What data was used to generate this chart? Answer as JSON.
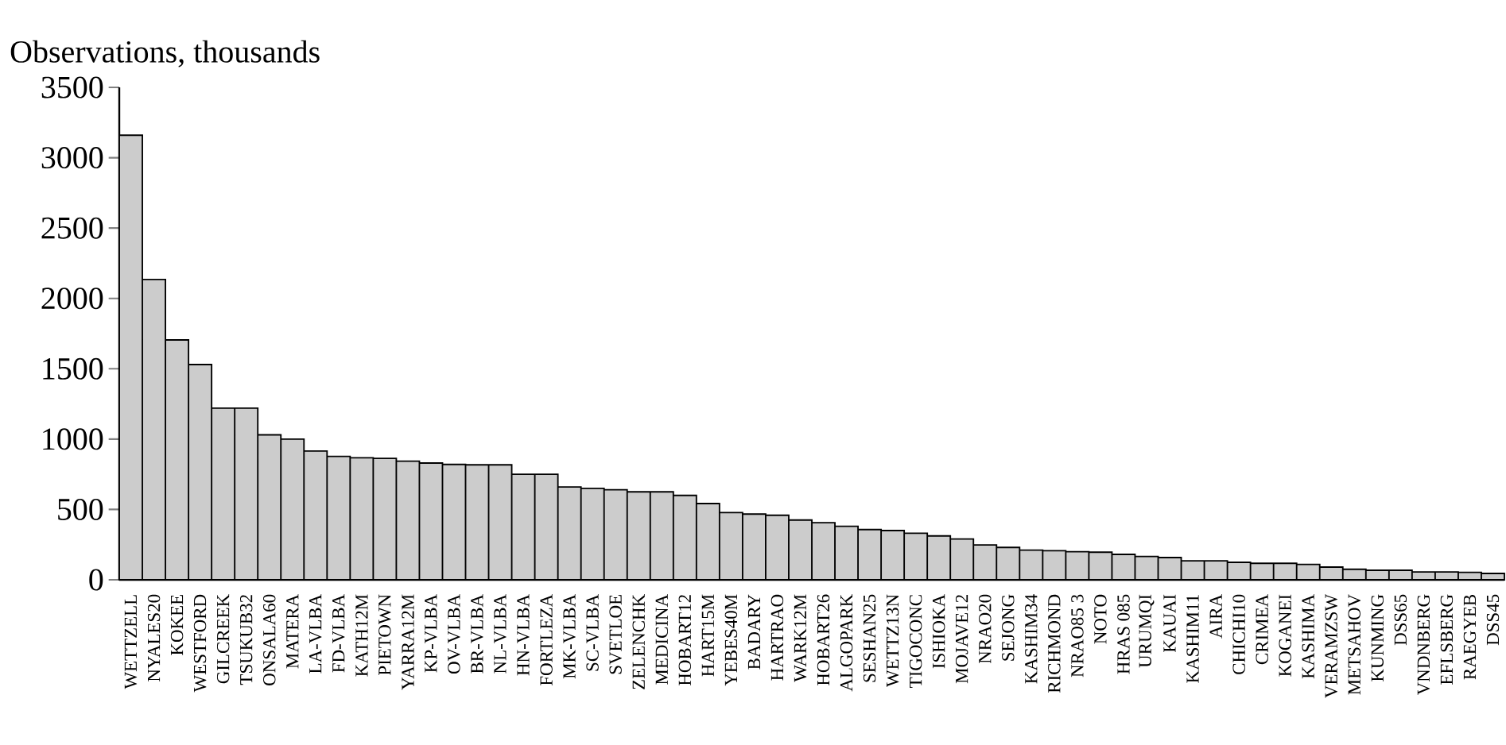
{
  "chart_data": {
    "type": "bar",
    "ylabel": "Observations, thousands",
    "categories": [
      "WETTZELL",
      "NYALES20",
      "KOKEE",
      "WESTFORD",
      "GILCREEK",
      "TSUKUB32",
      "ONSALA60",
      "MATERA",
      "LA-VLBA",
      "FD-VLBA",
      "KATH12M",
      "PIETOWN",
      "YARRA12M",
      "KP-VLBA",
      "OV-VLBA",
      "BR-VLBA",
      "NL-VLBA",
      "HN-VLBA",
      "FORTLEZA",
      "MK-VLBA",
      "SC-VLBA",
      "SVETLOE",
      "ZELENCHK",
      "MEDICINA",
      "HOBART12",
      "HART15M",
      "YEBES40M",
      "BADARY",
      "HARTRAO",
      "WARK12M",
      "HOBART26",
      "ALGOPARK",
      "SESHAN25",
      "WETTZ13N",
      "TIGOCONC",
      "ISHIOKA",
      "MOJAVE12",
      "NRAO20",
      "SEJONG",
      "KASHIM34",
      "RICHMOND",
      "NRAO85 3",
      "NOTO",
      "HRAS 085",
      "URUMQI",
      "KAUAI",
      "KASHIM11",
      "AIRA",
      "CHICHI10",
      "CRIMEA",
      "KOGANEI",
      "KASHIMA",
      "VERAMZSW",
      "METSAHOV",
      "KUNMING",
      "DSS65",
      "VNDNBERG",
      "EFLSBERG",
      "RAEGYEB",
      "DSS45"
    ],
    "values": [
      3160,
      2135,
      1705,
      1530,
      1220,
      1220,
      1030,
      1000,
      915,
      877,
      867,
      863,
      843,
      830,
      820,
      817,
      817,
      750,
      750,
      660,
      650,
      640,
      625,
      625,
      600,
      542,
      478,
      467,
      459,
      425,
      406,
      380,
      357,
      350,
      331,
      312,
      290,
      248,
      230,
      211,
      207,
      200,
      196,
      181,
      166,
      158,
      135,
      135,
      124,
      117,
      117,
      109,
      90,
      75,
      68,
      68,
      56,
      56,
      53,
      45
    ],
    "color": "#cccccc",
    "ylim": [
      0,
      3500
    ],
    "yticks": [
      0,
      500,
      1000,
      1500,
      2000,
      2500,
      3000,
      3500
    ]
  }
}
